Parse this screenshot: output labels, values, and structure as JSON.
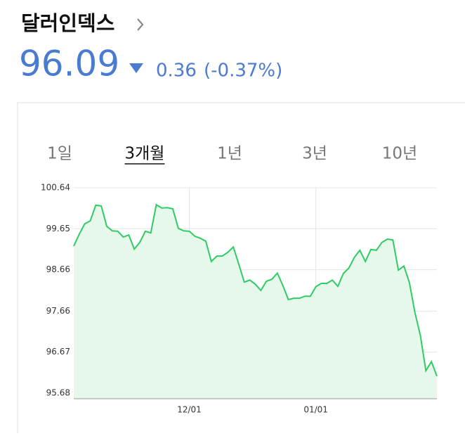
{
  "header": {
    "title": "달러인덱스",
    "price": "96.09",
    "change": "0.36",
    "change_percent": "(-0.37%)"
  },
  "tabs": [
    "1일",
    "3개월",
    "1년",
    "3년",
    "10년"
  ],
  "active_tab": 1,
  "chart_data": {
    "type": "line",
    "area": true,
    "color": "#2ecc62",
    "fill": "#e6f8ec",
    "grid": true,
    "categories": [
      null,
      null,
      null,
      null,
      null,
      null,
      null,
      null,
      null,
      null,
      null,
      null,
      null,
      null,
      null,
      null,
      null,
      null,
      null,
      null,
      null,
      "12/01",
      null,
      null,
      null,
      null,
      null,
      null,
      null,
      null,
      null,
      null,
      null,
      null,
      null,
      null,
      null,
      null,
      null,
      null,
      null,
      null,
      null,
      null,
      "01/01",
      null,
      null,
      null,
      null,
      null,
      null,
      null,
      null,
      null,
      null,
      null,
      null,
      null,
      null,
      null,
      null,
      null,
      null,
      null,
      null,
      null,
      null
    ],
    "values": [
      99.23,
      99.52,
      99.77,
      99.84,
      100.22,
      100.2,
      99.71,
      99.6,
      99.59,
      99.45,
      99.5,
      99.16,
      99.32,
      99.59,
      99.55,
      100.23,
      100.15,
      100.16,
      100.13,
      99.66,
      99.6,
      99.59,
      99.47,
      99.42,
      99.35,
      98.86,
      98.99,
      98.99,
      99.08,
      99.21,
      98.79,
      98.36,
      98.41,
      98.31,
      98.16,
      98.38,
      98.43,
      98.58,
      98.28,
      97.94,
      97.97,
      97.97,
      98.02,
      98.02,
      98.25,
      98.33,
      98.33,
      98.41,
      98.26,
      98.57,
      98.7,
      98.96,
      99.13,
      98.86,
      99.15,
      99.13,
      99.32,
      99.4,
      99.38,
      98.65,
      98.75,
      98.35,
      97.63,
      97.07,
      96.22,
      96.44,
      96.09
    ],
    "ylim": [
      95.68,
      100.64
    ],
    "yticks": [
      95.68,
      96.67,
      97.66,
      98.66,
      99.65,
      100.64
    ]
  }
}
